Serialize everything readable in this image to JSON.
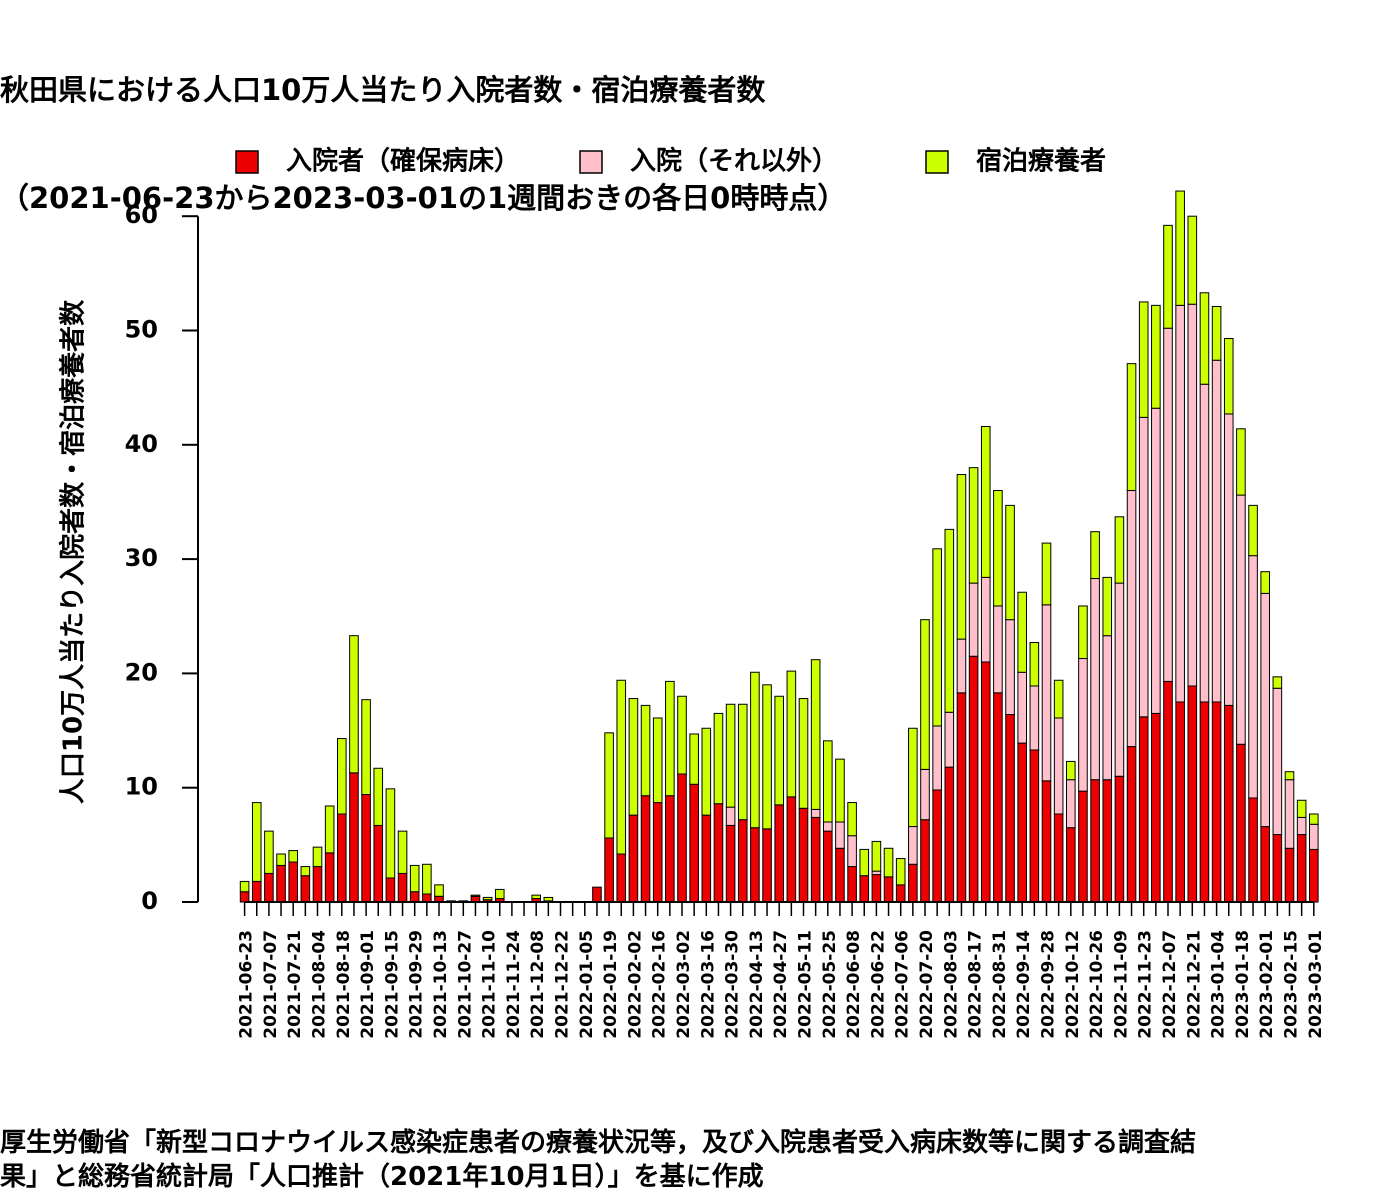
{
  "title": {
    "line1": "秋田県における人口10万人当たり入院者数・宿泊療養者数",
    "line2": "（2021-06-23から2023-03-01の1週間おきの各日0時時点）"
  },
  "footer": {
    "line1": "厚生労働省「新型コロナウイルス感染症患者の療養状況等，及び入院患者受入病床数等に関する調査結",
    "line2": "果」と総務省統計局「人口推計（2021年10月1日）」を基に作成"
  },
  "chart_data": {
    "type": "bar",
    "stacked": true,
    "ylabel": "人口10万人当たり入院者数・宿泊療養者数",
    "ylim": [
      0,
      62
    ],
    "yticks": [
      0,
      10,
      20,
      30,
      40,
      50,
      60
    ],
    "legend_position": "top",
    "categories": [
      "2021-06-23",
      "2021-06-30",
      "2021-07-07",
      "2021-07-14",
      "2021-07-21",
      "2021-07-28",
      "2021-08-04",
      "2021-08-11",
      "2021-08-18",
      "2021-08-25",
      "2021-09-01",
      "2021-09-08",
      "2021-09-15",
      "2021-09-22",
      "2021-09-29",
      "2021-10-06",
      "2021-10-13",
      "2021-10-20",
      "2021-10-27",
      "2021-11-03",
      "2021-11-10",
      "2021-11-17",
      "2021-11-24",
      "2021-12-01",
      "2021-12-08",
      "2021-12-15",
      "2021-12-22",
      "2021-12-29",
      "2022-01-05",
      "2022-01-12",
      "2022-01-19",
      "2022-01-26",
      "2022-02-02",
      "2022-02-09",
      "2022-02-16",
      "2022-02-23",
      "2022-03-02",
      "2022-03-09",
      "2022-03-16",
      "2022-03-23",
      "2022-03-30",
      "2022-04-06",
      "2022-04-13",
      "2022-04-20",
      "2022-04-27",
      "2022-05-04",
      "2022-05-11",
      "2022-05-18",
      "2022-05-25",
      "2022-06-01",
      "2022-06-08",
      "2022-06-15",
      "2022-06-22",
      "2022-06-29",
      "2022-07-06",
      "2022-07-13",
      "2022-07-20",
      "2022-07-27",
      "2022-08-03",
      "2022-08-10",
      "2022-08-17",
      "2022-08-24",
      "2022-08-31",
      "2022-09-07",
      "2022-09-14",
      "2022-09-21",
      "2022-09-28",
      "2022-10-05",
      "2022-10-12",
      "2022-10-19",
      "2022-10-26",
      "2022-11-02",
      "2022-11-09",
      "2022-11-16",
      "2022-11-23",
      "2022-11-30",
      "2022-12-07",
      "2022-12-14",
      "2022-12-21",
      "2022-12-28",
      "2023-01-04",
      "2023-01-11",
      "2023-01-18",
      "2023-01-25",
      "2023-02-01",
      "2023-02-08",
      "2023-02-15",
      "2023-02-22",
      "2023-03-01"
    ],
    "visible_tick_labels": [
      "2021-06-23",
      "2021-07-07",
      "2021-07-21",
      "2021-08-04",
      "2021-08-18",
      "2021-09-01",
      "2021-09-15",
      "2021-09-29",
      "2021-10-13",
      "2021-10-27",
      "2021-11-10",
      "2021-11-24",
      "2021-12-08",
      "2021-12-22",
      "2022-01-05",
      "2022-01-19",
      "2022-02-02",
      "2022-02-16",
      "2022-03-02",
      "2022-03-16",
      "2022-03-30",
      "2022-04-13",
      "2022-04-27",
      "2022-05-11",
      "2022-05-25",
      "2022-06-08",
      "2022-06-22",
      "2022-07-06",
      "2022-07-20",
      "2022-08-03",
      "2022-08-17",
      "2022-08-31",
      "2022-09-14",
      "2022-09-28",
      "2022-10-12",
      "2022-10-26",
      "2022-11-09",
      "2022-11-23",
      "2022-12-07",
      "2022-12-21",
      "2023-01-04",
      "2023-01-18",
      "2023-02-01",
      "2023-02-15",
      "2023-03-01"
    ],
    "series": [
      {
        "name": "入院者（確保病床）",
        "color": "#ee0000",
        "values": [
          0.9,
          1.8,
          2.5,
          3.2,
          3.5,
          2.3,
          3.1,
          4.3,
          7.7,
          11.3,
          9.4,
          6.7,
          2.1,
          2.5,
          0.9,
          0.7,
          0.5,
          0.1,
          0.1,
          0.5,
          0.2,
          0.3,
          0,
          0,
          0.3,
          0.1,
          0,
          0,
          0,
          1.3,
          5.6,
          4.2,
          7.6,
          9.3,
          8.7,
          9.3,
          11.2,
          10.3,
          7.6,
          8.6,
          6.7,
          7.2,
          6.5,
          6.4,
          8.5,
          9.2,
          8.2,
          7.4,
          6.2,
          4.7,
          3.1,
          2.3,
          2.4,
          2.2,
          1.5,
          3.3,
          7.2,
          9.8,
          11.8,
          18.3,
          21.5,
          21.0,
          18.3,
          16.4,
          13.9,
          13.3,
          10.6,
          7.7,
          6.5,
          9.7,
          10.7,
          10.7,
          11.0,
          13.6,
          16.2,
          16.5,
          19.3,
          17.5,
          18.9,
          17.5,
          17.5,
          17.2,
          13.8,
          9.1,
          6.6,
          5.9,
          4.7,
          5.9,
          4.6
        ]
      },
      {
        "name": "入院（それ以外）",
        "color": "#ffc0cb",
        "values": [
          0,
          0,
          0,
          0,
          0,
          0,
          0,
          0,
          0,
          0,
          0,
          0,
          0,
          0,
          0,
          0,
          0,
          0,
          0,
          0,
          0,
          0,
          0,
          0,
          0,
          0,
          0,
          0,
          0,
          0,
          0,
          0,
          0,
          0,
          0,
          0,
          0,
          0,
          0,
          0,
          1.6,
          0,
          0,
          0,
          0,
          0,
          0,
          0.7,
          0.8,
          2.3,
          2.7,
          0,
          0.3,
          0,
          0,
          3.3,
          4.4,
          5.6,
          4.8,
          4.7,
          6.4,
          7.4,
          7.6,
          8.3,
          6.2,
          5.6,
          15.4,
          8.4,
          4.2,
          11.6,
          17.6,
          12.6,
          16.9,
          22.4,
          26.2,
          26.7,
          30.9,
          34.7,
          33.4,
          27.8,
          29.9,
          25.5,
          21.8,
          21.2,
          20.4,
          12.8,
          6.0,
          1.5,
          2.2
        ]
      },
      {
        "name": "宿泊療養者",
        "color": "#ccff00",
        "values": [
          0.9,
          6.9,
          3.7,
          1.0,
          1.0,
          0.8,
          1.7,
          4.1,
          6.6,
          12.0,
          8.3,
          5.0,
          7.8,
          3.7,
          2.3,
          2.6,
          1.0,
          0,
          0,
          0.1,
          0.2,
          0.8,
          0,
          0,
          0.3,
          0.3,
          0,
          0,
          0,
          0,
          9.2,
          15.2,
          10.2,
          7.9,
          7.4,
          10.0,
          6.8,
          4.4,
          7.6,
          7.9,
          9.0,
          10.1,
          13.6,
          12.6,
          9.5,
          11.0,
          9.6,
          13.1,
          7.1,
          5.5,
          2.9,
          2.3,
          2.6,
          2.5,
          2.3,
          8.6,
          13.1,
          15.5,
          16.0,
          14.4,
          10.1,
          13.2,
          10.1,
          10.0,
          7.0,
          3.8,
          5.4,
          3.3,
          1.6,
          4.6,
          4.1,
          5.1,
          5.8,
          11.1,
          10.1,
          9.0,
          9.0,
          10.0,
          7.7,
          8.0,
          4.7,
          6.6,
          5.8,
          4.4,
          1.9,
          1.0,
          0.7,
          1.5,
          0.9
        ]
      }
    ]
  }
}
